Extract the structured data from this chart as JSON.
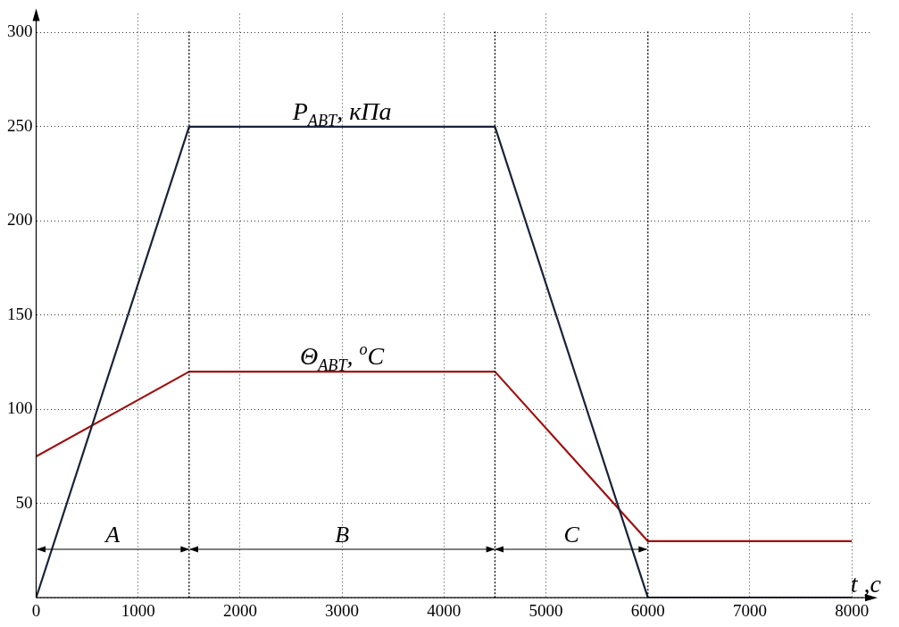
{
  "chart_data": {
    "type": "line",
    "xlabel": "t ,c",
    "x": [
      0,
      1500,
      4500,
      6000,
      8000
    ],
    "series": [
      {
        "name": "P$_{ABT}$, кПа",
        "color": "#1a2238",
        "values": [
          0,
          250,
          250,
          0,
          0
        ]
      },
      {
        "name": "Θ$_{ABT}$, $^{o}$C",
        "color": "#a01010",
        "values": [
          75,
          120,
          120,
          30,
          30
        ]
      }
    ],
    "xlim": [
      0,
      8200
    ],
    "ylim": [
      0,
      310
    ],
    "xticks": [
      0,
      1000,
      2000,
      3000,
      4000,
      5000,
      6000,
      7000,
      8000
    ],
    "yticks": [
      {
        "value": 0,
        "label": null
      },
      50,
      100,
      150,
      200,
      250,
      300
    ],
    "ref_lines": [
      {
        "axis": "x",
        "value": 1500
      },
      {
        "axis": "x",
        "value": 4500
      },
      {
        "axis": "x",
        "value": 6000
      }
    ],
    "annotations": [
      "A",
      "B",
      "C"
    ],
    "grid": true,
    "legend": false,
    "marker": "none",
    "line_style": "solid"
  }
}
